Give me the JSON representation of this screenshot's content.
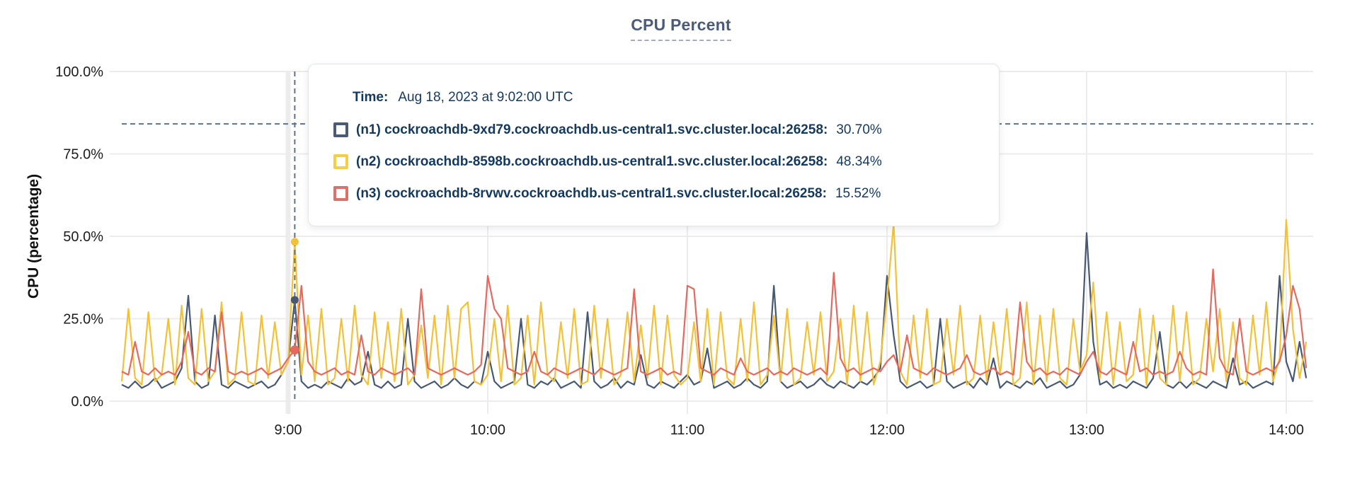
{
  "title": "CPU Percent",
  "y_axis_title": "CPU (percentage)",
  "tooltip": {
    "time_label": "Time:",
    "time_value": "Aug 18, 2023 at 9:02:00 UTC",
    "rows": [
      {
        "label": "(n1) cockroachdb-9xd79.cockroachdb.us-central1.svc.cluster.local:26258:",
        "value": "30.70%",
        "swatch_color": "#4c5b75"
      },
      {
        "label": "(n2) cockroachdb-8598b.cockroachdb.us-central1.svc.cluster.local:26258:",
        "value": "48.34%",
        "swatch_color": "#f5ce43"
      },
      {
        "label": "(n3) cockroachdb-8rvwv.cockroachdb.us-central1.svc.cluster.local:26258:",
        "value": "15.52%",
        "swatch_color": "#dd7168"
      }
    ]
  },
  "colors": {
    "grid": "#ececec",
    "crosshair": "#5d7389",
    "title": "#4c5c78",
    "axis_text": "#1d1d1d",
    "tooltip_text": "#14395e",
    "background": "#ffffff"
  },
  "chart_data": {
    "type": "line",
    "title": "CPU Percent",
    "xlabel": "",
    "ylabel": "CPU (percentage)",
    "ylim": [
      0,
      100
    ],
    "grid": true,
    "legend_position": "tooltip-overlay",
    "y_ticks": [
      "100.0%",
      "75.0%",
      "50.0%",
      "25.0%",
      "0.0%"
    ],
    "y_tick_values": [
      100,
      75,
      50,
      25,
      0
    ],
    "x_ticks": [
      "9:00",
      "10:00",
      "11:00",
      "12:00",
      "13:00",
      "14:00"
    ],
    "x_start_time": "8:10",
    "x_end_time": "14:06",
    "x_step_minutes": 2,
    "hover": {
      "time": "9:02",
      "date": "Aug 18, 2023",
      "dashed_hline_percent": 84.1,
      "marker_values": {
        "n1": 30.7,
        "n2": 48.34,
        "n3": 15.52
      }
    },
    "series": [
      {
        "id": "n1",
        "name": "(n1) cockroachdb-9xd79.cockroachdb.us-central1.svc.cluster.local:26258",
        "color": "#475872",
        "hover_value": 30.7,
        "values": [
          5,
          4,
          6,
          4,
          5,
          7,
          4,
          5,
          6,
          10,
          32,
          6,
          4,
          5,
          26,
          5,
          4,
          6,
          5,
          4,
          5,
          6,
          4,
          5,
          8,
          12,
          30.7,
          6,
          4,
          5,
          4,
          6,
          5,
          4,
          7,
          5,
          6,
          15,
          5,
          4,
          6,
          4,
          5,
          25,
          6,
          4,
          5,
          6,
          4,
          5,
          7,
          5,
          4,
          6,
          5,
          15,
          6,
          4,
          5,
          6,
          25,
          5,
          4,
          6,
          5,
          7,
          4,
          5,
          6,
          4,
          27,
          6,
          4,
          5,
          7,
          4,
          6,
          5,
          14,
          5,
          4,
          6,
          5,
          4,
          6,
          8,
          5,
          6,
          16,
          4,
          5,
          6,
          4,
          5,
          7,
          5,
          4,
          6,
          35,
          6,
          4,
          5,
          6,
          4,
          5,
          7,
          5,
          4,
          6,
          5,
          4,
          6,
          5,
          7,
          10,
          38,
          20,
          6,
          4,
          5,
          6,
          4,
          5,
          25,
          6,
          4,
          5,
          6,
          4,
          7,
          5,
          13,
          4,
          6,
          5,
          4,
          6,
          5,
          7,
          4,
          5,
          6,
          4,
          5,
          8,
          51,
          18,
          5,
          6,
          4,
          5,
          4,
          6,
          5,
          4,
          7,
          21,
          5,
          4,
          6,
          4,
          6,
          5,
          4,
          6,
          5,
          4,
          13,
          5,
          6,
          4,
          5,
          6,
          5,
          38,
          12,
          6,
          18,
          7
        ]
      },
      {
        "id": "n2",
        "name": "(n2) cockroachdb-8598b.cockroachdb.us-central1.svc.cluster.local:26258",
        "color": "#f3c138",
        "hover_value": 48.34,
        "values": [
          6,
          28,
          7,
          5,
          27,
          6,
          8,
          25,
          5,
          29,
          7,
          5,
          28,
          6,
          9,
          30,
          5,
          7,
          27,
          6,
          5,
          26,
          7,
          24,
          8,
          12,
          48.34,
          8,
          26,
          6,
          28,
          5,
          7,
          25,
          6,
          29,
          8,
          5,
          27,
          7,
          24,
          6,
          28,
          5,
          8,
          23,
          7,
          26,
          5,
          29,
          7,
          28,
          30,
          6,
          5,
          8,
          25,
          6,
          29,
          5,
          7,
          26,
          5,
          30,
          8,
          6,
          24,
          7,
          28,
          5,
          6,
          29,
          7,
          25,
          5,
          8,
          27,
          6,
          23,
          7,
          29,
          5,
          26,
          8,
          5,
          7,
          24,
          6,
          28,
          5,
          27,
          7,
          5,
          25,
          6,
          30,
          5,
          8,
          26,
          6,
          28,
          5,
          7,
          24,
          8,
          27,
          6,
          9,
          25,
          5,
          29,
          6,
          27,
          5,
          12,
          31,
          54,
          9,
          5,
          26,
          7,
          28,
          5,
          6,
          25,
          8,
          29,
          5,
          7,
          26,
          6,
          24,
          8,
          28,
          5,
          7,
          30,
          5,
          26,
          6,
          28,
          7,
          5,
          25,
          9,
          14,
          36,
          7,
          27,
          5,
          24,
          6,
          8,
          28,
          5,
          26,
          7,
          5,
          29,
          6,
          27,
          5,
          7,
          25,
          9,
          28,
          6,
          24,
          7,
          5,
          26,
          8,
          30,
          6,
          13,
          55,
          22,
          7,
          18
        ]
      },
      {
        "id": "n3",
        "name": "(n3) cockroachdb-8rvwv.cockroachdb.us-central1.svc.cluster.local:26258",
        "color": "#e5695e",
        "hover_value": 15.52,
        "values": [
          9,
          8,
          18,
          9,
          8,
          10,
          8,
          9,
          8,
          12,
          21,
          9,
          8,
          10,
          9,
          27,
          9,
          8,
          9,
          8,
          9,
          10,
          8,
          9,
          10,
          13,
          15.52,
          35,
          12,
          9,
          8,
          9,
          10,
          8,
          9,
          8,
          20,
          9,
          8,
          10,
          9,
          8,
          9,
          10,
          8,
          34,
          10,
          9,
          8,
          9,
          10,
          9,
          8,
          9,
          11,
          38,
          28,
          25,
          10,
          9,
          8,
          9,
          15,
          9,
          8,
          10,
          9,
          8,
          9,
          10,
          9,
          8,
          10,
          9,
          8,
          9,
          10,
          34,
          9,
          8,
          9,
          10,
          8,
          9,
          8,
          35,
          34,
          10,
          9,
          8,
          10,
          9,
          8,
          13,
          9,
          8,
          9,
          10,
          8,
          9,
          8,
          10,
          9,
          8,
          9,
          10,
          8,
          39,
          13,
          9,
          10,
          8,
          9,
          10,
          9,
          12,
          14,
          9,
          20,
          10,
          9,
          8,
          10,
          9,
          8,
          9,
          10,
          14,
          9,
          8,
          9,
          10,
          8,
          9,
          8,
          30,
          12,
          9,
          10,
          8,
          9,
          8,
          10,
          9,
          8,
          12,
          15,
          9,
          8,
          10,
          9,
          8,
          18,
          9,
          10,
          8,
          9,
          8,
          9,
          15,
          10,
          8,
          9,
          8,
          40,
          13,
          9,
          8,
          25,
          9,
          8,
          9,
          10,
          9,
          12,
          20,
          35,
          28,
          10
        ]
      }
    ]
  }
}
